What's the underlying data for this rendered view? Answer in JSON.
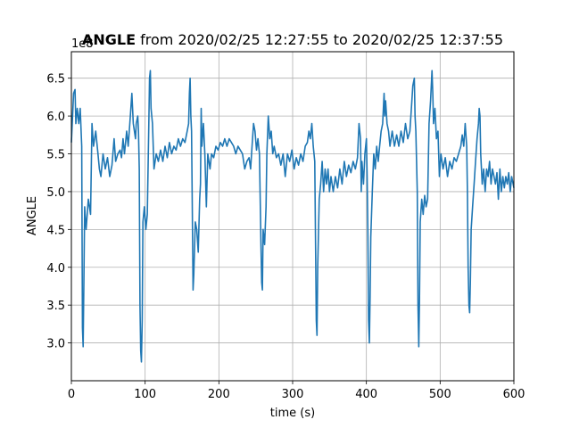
{
  "chart_data": {
    "type": "line",
    "title": {
      "bold": "ANGLE",
      "rest": " from 2020/02/25 12:27:55 to 2020/02/25 12:37:55"
    },
    "xlabel": "time (s)",
    "ylabel": "ANGLE",
    "y_offset_label": "1e8",
    "xlim": [
      0,
      600
    ],
    "ylim": [
      2.5,
      6.85
    ],
    "xticks": [
      0,
      100,
      200,
      300,
      400,
      500,
      600
    ],
    "yticks": [
      3.0,
      3.5,
      4.0,
      4.5,
      5.0,
      5.5,
      6.0,
      6.5
    ],
    "grid": true,
    "line_color": "#1f77b4",
    "series": [
      {
        "points": [
          [
            0,
            5.65
          ],
          [
            3,
            6.3
          ],
          [
            5,
            6.35
          ],
          [
            6,
            5.9
          ],
          [
            8,
            6.1
          ],
          [
            10,
            5.9
          ],
          [
            12,
            6.1
          ],
          [
            14,
            5.6
          ],
          [
            15,
            3.2
          ],
          [
            16,
            2.95
          ],
          [
            17,
            3.9
          ],
          [
            18,
            4.8
          ],
          [
            20,
            4.5
          ],
          [
            23,
            4.9
          ],
          [
            26,
            4.7
          ],
          [
            28,
            5.9
          ],
          [
            30,
            5.6
          ],
          [
            33,
            5.8
          ],
          [
            36,
            5.5
          ],
          [
            38,
            5.3
          ],
          [
            40,
            5.2
          ],
          [
            43,
            5.5
          ],
          [
            46,
            5.3
          ],
          [
            49,
            5.45
          ],
          [
            52,
            5.2
          ],
          [
            55,
            5.35
          ],
          [
            58,
            5.7
          ],
          [
            60,
            5.4
          ],
          [
            63,
            5.5
          ],
          [
            66,
            5.55
          ],
          [
            68,
            5.45
          ],
          [
            70,
            5.7
          ],
          [
            72,
            5.5
          ],
          [
            75,
            5.8
          ],
          [
            77,
            5.6
          ],
          [
            80,
            6.0
          ],
          [
            82,
            6.3
          ],
          [
            84,
            5.9
          ],
          [
            87,
            5.7
          ],
          [
            88,
            5.9
          ],
          [
            90,
            6.0
          ],
          [
            91,
            5.8
          ],
          [
            92,
            5.3
          ],
          [
            93,
            3.5
          ],
          [
            94,
            2.9
          ],
          [
            95,
            2.75
          ],
          [
            96,
            3.3
          ],
          [
            97,
            4.6
          ],
          [
            99,
            4.8
          ],
          [
            101,
            4.5
          ],
          [
            103,
            4.7
          ],
          [
            105,
            5.9
          ],
          [
            106,
            6.5
          ],
          [
            107,
            6.6
          ],
          [
            108,
            6.1
          ],
          [
            110,
            5.9
          ],
          [
            112,
            5.3
          ],
          [
            115,
            5.5
          ],
          [
            118,
            5.4
          ],
          [
            121,
            5.55
          ],
          [
            124,
            5.4
          ],
          [
            127,
            5.6
          ],
          [
            130,
            5.45
          ],
          [
            133,
            5.65
          ],
          [
            136,
            5.5
          ],
          [
            139,
            5.6
          ],
          [
            142,
            5.55
          ],
          [
            145,
            5.7
          ],
          [
            148,
            5.6
          ],
          [
            151,
            5.7
          ],
          [
            154,
            5.65
          ],
          [
            157,
            5.8
          ],
          [
            159,
            5.9
          ],
          [
            160,
            6.3
          ],
          [
            161,
            6.5
          ],
          [
            162,
            6.0
          ],
          [
            163,
            5.8
          ],
          [
            164,
            4.7
          ],
          [
            165,
            3.7
          ],
          [
            166,
            3.9
          ],
          [
            168,
            4.6
          ],
          [
            170,
            4.5
          ],
          [
            172,
            4.2
          ],
          [
            174,
            4.9
          ],
          [
            175,
            5.1
          ],
          [
            176,
            6.1
          ],
          [
            177,
            5.6
          ],
          [
            179,
            5.9
          ],
          [
            181,
            5.5
          ],
          [
            183,
            4.8
          ],
          [
            185,
            5.5
          ],
          [
            188,
            5.3
          ],
          [
            190,
            5.5
          ],
          [
            193,
            5.45
          ],
          [
            196,
            5.6
          ],
          [
            199,
            5.55
          ],
          [
            202,
            5.65
          ],
          [
            205,
            5.6
          ],
          [
            208,
            5.7
          ],
          [
            211,
            5.6
          ],
          [
            214,
            5.7
          ],
          [
            217,
            5.65
          ],
          [
            220,
            5.6
          ],
          [
            223,
            5.5
          ],
          [
            226,
            5.6
          ],
          [
            229,
            5.55
          ],
          [
            232,
            5.5
          ],
          [
            235,
            5.3
          ],
          [
            238,
            5.4
          ],
          [
            241,
            5.45
          ],
          [
            243,
            5.3
          ],
          [
            245,
            5.6
          ],
          [
            247,
            5.9
          ],
          [
            249,
            5.8
          ],
          [
            251,
            5.55
          ],
          [
            253,
            5.7
          ],
          [
            255,
            5.5
          ],
          [
            257,
            4.3
          ],
          [
            258,
            3.8
          ],
          [
            259,
            3.7
          ],
          [
            260,
            4.5
          ],
          [
            262,
            4.3
          ],
          [
            264,
            4.8
          ],
          [
            265,
            5.5
          ],
          [
            267,
            6.0
          ],
          [
            269,
            5.7
          ],
          [
            271,
            5.8
          ],
          [
            273,
            5.5
          ],
          [
            275,
            5.6
          ],
          [
            278,
            5.45
          ],
          [
            281,
            5.5
          ],
          [
            284,
            5.35
          ],
          [
            287,
            5.5
          ],
          [
            290,
            5.2
          ],
          [
            293,
            5.5
          ],
          [
            296,
            5.4
          ],
          [
            299,
            5.55
          ],
          [
            302,
            5.3
          ],
          [
            305,
            5.45
          ],
          [
            308,
            5.35
          ],
          [
            311,
            5.5
          ],
          [
            314,
            5.4
          ],
          [
            317,
            5.6
          ],
          [
            320,
            5.65
          ],
          [
            322,
            5.8
          ],
          [
            324,
            5.7
          ],
          [
            326,
            5.9
          ],
          [
            328,
            5.6
          ],
          [
            330,
            5.4
          ],
          [
            331,
            4.4
          ],
          [
            332,
            3.3
          ],
          [
            333,
            3.1
          ],
          [
            334,
            4.0
          ],
          [
            336,
            4.9
          ],
          [
            338,
            5.1
          ],
          [
            340,
            5.4
          ],
          [
            342,
            5.0
          ],
          [
            344,
            5.3
          ],
          [
            346,
            5.1
          ],
          [
            348,
            5.3
          ],
          [
            350,
            5.0
          ],
          [
            352,
            5.2
          ],
          [
            355,
            5.0
          ],
          [
            358,
            5.2
          ],
          [
            361,
            5.05
          ],
          [
            364,
            5.3
          ],
          [
            367,
            5.1
          ],
          [
            370,
            5.4
          ],
          [
            373,
            5.2
          ],
          [
            376,
            5.35
          ],
          [
            379,
            5.25
          ],
          [
            382,
            5.4
          ],
          [
            385,
            5.3
          ],
          [
            388,
            5.45
          ],
          [
            390,
            5.9
          ],
          [
            392,
            5.7
          ],
          [
            393,
            5.0
          ],
          [
            394,
            5.4
          ],
          [
            396,
            5.1
          ],
          [
            398,
            5.5
          ],
          [
            400,
            5.7
          ],
          [
            401,
            5.2
          ],
          [
            402,
            4.5
          ],
          [
            403,
            3.3
          ],
          [
            404,
            3.0
          ],
          [
            405,
            3.6
          ],
          [
            406,
            4.4
          ],
          [
            408,
            5.0
          ],
          [
            410,
            5.5
          ],
          [
            412,
            5.3
          ],
          [
            414,
            5.6
          ],
          [
            416,
            5.4
          ],
          [
            418,
            5.6
          ],
          [
            420,
            5.8
          ],
          [
            422,
            5.9
          ],
          [
            424,
            6.3
          ],
          [
            425,
            6.0
          ],
          [
            426,
            6.2
          ],
          [
            428,
            5.9
          ],
          [
            430,
            5.8
          ],
          [
            432,
            5.6
          ],
          [
            435,
            5.8
          ],
          [
            438,
            5.6
          ],
          [
            441,
            5.75
          ],
          [
            444,
            5.6
          ],
          [
            447,
            5.8
          ],
          [
            450,
            5.65
          ],
          [
            453,
            5.9
          ],
          [
            456,
            5.7
          ],
          [
            459,
            5.8
          ],
          [
            461,
            6.1
          ],
          [
            463,
            6.4
          ],
          [
            465,
            6.5
          ],
          [
            466,
            6.0
          ],
          [
            467,
            5.8
          ],
          [
            469,
            5.0
          ],
          [
            470,
            3.5
          ],
          [
            471,
            2.95
          ],
          [
            472,
            3.6
          ],
          [
            473,
            4.6
          ],
          [
            475,
            4.9
          ],
          [
            477,
            4.7
          ],
          [
            479,
            4.95
          ],
          [
            481,
            4.8
          ],
          [
            483,
            4.9
          ],
          [
            485,
            5.9
          ],
          [
            487,
            6.2
          ],
          [
            489,
            6.6
          ],
          [
            490,
            6.3
          ],
          [
            491,
            5.9
          ],
          [
            493,
            6.1
          ],
          [
            495,
            5.7
          ],
          [
            497,
            5.8
          ],
          [
            499,
            5.2
          ],
          [
            501,
            5.5
          ],
          [
            504,
            5.3
          ],
          [
            507,
            5.45
          ],
          [
            510,
            5.2
          ],
          [
            513,
            5.4
          ],
          [
            516,
            5.3
          ],
          [
            519,
            5.45
          ],
          [
            522,
            5.4
          ],
          [
            525,
            5.5
          ],
          [
            528,
            5.6
          ],
          [
            530,
            5.75
          ],
          [
            532,
            5.6
          ],
          [
            534,
            5.9
          ],
          [
            536,
            5.6
          ],
          [
            537,
            5.0
          ],
          [
            538,
            4.0
          ],
          [
            539,
            3.5
          ],
          [
            540,
            3.4
          ],
          [
            541,
            3.8
          ],
          [
            542,
            4.5
          ],
          [
            544,
            4.8
          ],
          [
            546,
            5.1
          ],
          [
            548,
            5.4
          ],
          [
            550,
            5.7
          ],
          [
            552,
            5.9
          ],
          [
            553,
            6.1
          ],
          [
            554,
            6.0
          ],
          [
            555,
            5.5
          ],
          [
            557,
            5.1
          ],
          [
            559,
            5.3
          ],
          [
            561,
            5.0
          ],
          [
            563,
            5.3
          ],
          [
            565,
            5.2
          ],
          [
            567,
            5.4
          ],
          [
            569,
            5.1
          ],
          [
            571,
            5.3
          ],
          [
            573,
            5.2
          ],
          [
            575,
            5.1
          ],
          [
            577,
            5.25
          ],
          [
            579,
            4.9
          ],
          [
            581,
            5.3
          ],
          [
            583,
            5.0
          ],
          [
            585,
            5.2
          ],
          [
            587,
            5.05
          ],
          [
            589,
            5.2
          ],
          [
            591,
            5.1
          ],
          [
            593,
            5.25
          ],
          [
            595,
            5.0
          ],
          [
            597,
            5.2
          ],
          [
            600,
            5.05
          ]
        ]
      }
    ]
  }
}
